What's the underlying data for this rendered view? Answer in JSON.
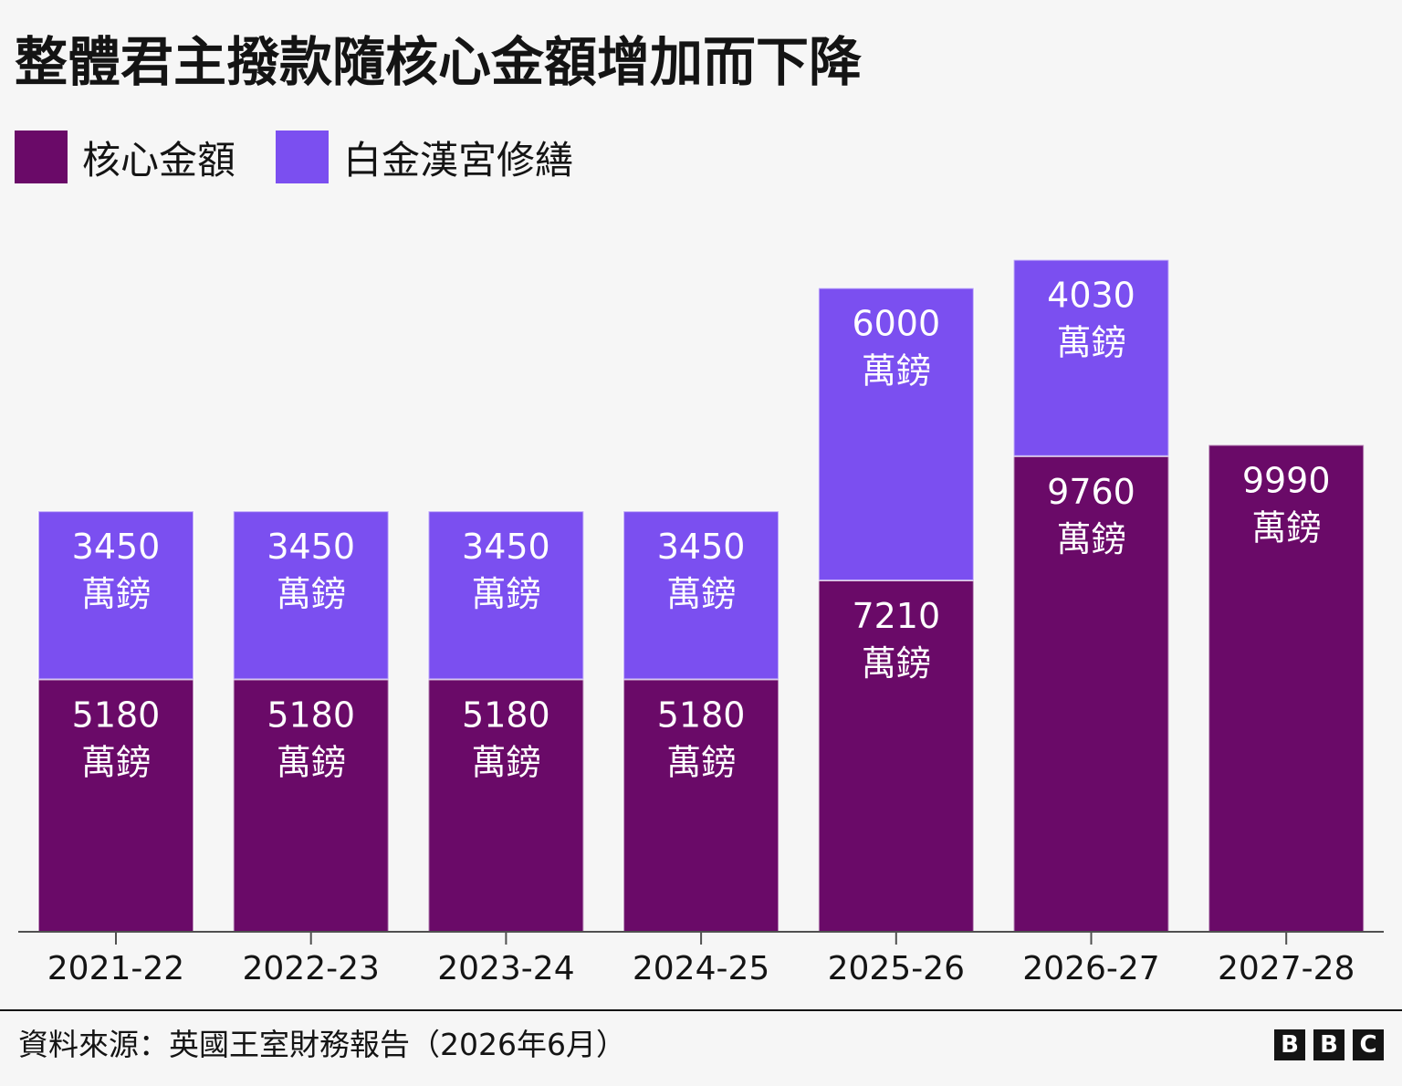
{
  "title": "整體君主撥款隨核心金額增加而下降",
  "legend": [
    {
      "label": "核心金額",
      "color": "#6a0a68"
    },
    {
      "label": "白金漢宮修繕",
      "color": "#7b4ff0"
    }
  ],
  "chart_data": {
    "type": "bar",
    "stacked": true,
    "title": "整體君主撥款隨核心金額增加而下降",
    "categories": [
      "2021-22",
      "2022-23",
      "2023-24",
      "2024-25",
      "2025-26",
      "2026-27",
      "2027-28"
    ],
    "series": [
      {
        "name": "核心金額",
        "color": "#6a0a68",
        "values": [
          5180,
          5180,
          5180,
          5180,
          7210,
          9760,
          9990
        ]
      },
      {
        "name": "白金漢宮修繕",
        "color": "#7b4ff0",
        "values": [
          3450,
          3450,
          3450,
          3450,
          6000,
          4030,
          0
        ]
      }
    ],
    "value_unit": "萬鎊",
    "xlabel": "",
    "ylabel": "",
    "y_axis_shown": false,
    "grid": false,
    "legend_position": "top-left"
  },
  "source": "資料來源：英國王室財務報告（2026年6月）",
  "logo": [
    "B",
    "B",
    "C"
  ]
}
